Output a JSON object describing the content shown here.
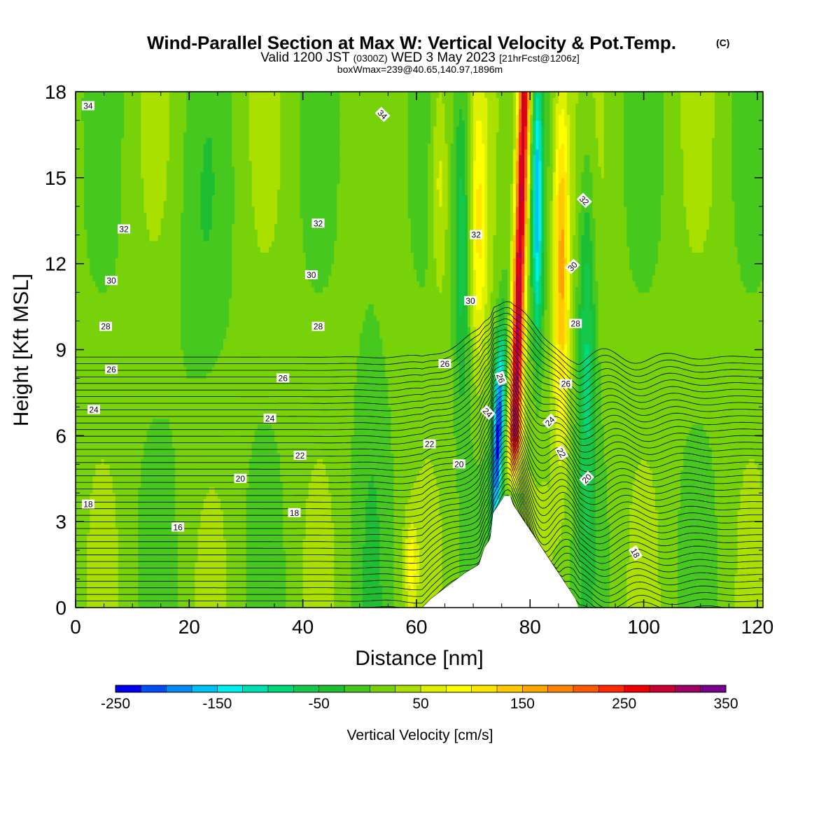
{
  "chart_data": {
    "type": "heatmap",
    "title": "Wind-Parallel Section at Max W: Vertical Velocity & Pot.Temp.",
    "title_mark": "(C)",
    "subtitle": {
      "valid": "Valid 1200 JST",
      "utc": "(0300Z)",
      "date": "WED 3 May 2023",
      "run": "[21hrFcst@1206z]"
    },
    "subtitle2": "boxWmax=239@40.65,140.97,1896m",
    "xlabel": "Distance [nm]",
    "ylabel": "Height [Kft MSL]",
    "xlim": [
      0,
      121
    ],
    "ylim": [
      0,
      18
    ],
    "xticks": [
      "0",
      "20",
      "40",
      "60",
      "80",
      "100",
      "120"
    ],
    "xtick_values": [
      0,
      20,
      40,
      60,
      80,
      100,
      120
    ],
    "yticks": [
      "0",
      "3",
      "6",
      "9",
      "12",
      "15",
      "18"
    ],
    "ytick_values": [
      0,
      3,
      6,
      9,
      12,
      15,
      18
    ],
    "colorbar": {
      "title": "Vertical Velocity [cm/s]",
      "labels": [
        "-250",
        "-150",
        "-50",
        "50",
        "150",
        "250",
        "350"
      ],
      "min": -250,
      "max": 350,
      "step": 25,
      "colors": [
        "#0000ee",
        "#0050f5",
        "#0088f5",
        "#00c0f5",
        "#00f0f0",
        "#00e0b4",
        "#00d67a",
        "#14c84b",
        "#1ebe32",
        "#46c81e",
        "#78d20a",
        "#aae000",
        "#dcf000",
        "#ffff00",
        "#ffe600",
        "#ffc800",
        "#ffa500",
        "#ff8200",
        "#ff5a00",
        "#ff2800",
        "#ee0000",
        "#c80032",
        "#a00064",
        "#78008c",
        "#5a00a0"
      ]
    },
    "features": {
      "updraft_core": {
        "x_base": 76.5,
        "x_top": 79,
        "peak_w": 300
      },
      "downdraft_core": {
        "x_base": 74,
        "x_top": 81.5,
        "min_w": -240
      },
      "terrain": [
        [
          61,
          0
        ],
        [
          62.5,
          0.3
        ],
        [
          64.5,
          0.6
        ],
        [
          66.5,
          0.9
        ],
        [
          68.5,
          1.2
        ],
        [
          71,
          1.5
        ],
        [
          72,
          2.1
        ],
        [
          73,
          2.4
        ],
        [
          73.5,
          3.3
        ],
        [
          74.5,
          3.6
        ],
        [
          75.5,
          3.9
        ],
        [
          76.5,
          3.9
        ],
        [
          77,
          3.6
        ],
        [
          78,
          3.3
        ],
        [
          79,
          3.0
        ],
        [
          80,
          2.7
        ],
        [
          81,
          2.4
        ],
        [
          82,
          2.1
        ],
        [
          83,
          1.8
        ],
        [
          84,
          1.5
        ],
        [
          85,
          1.2
        ],
        [
          86,
          0.9
        ],
        [
          87,
          0.6
        ],
        [
          88,
          0.3
        ],
        [
          88.5,
          0
        ]
      ]
    },
    "theta_contours": {
      "levels": [
        15,
        15.5,
        16,
        16.5,
        17,
        17.5,
        18,
        18.5,
        19,
        19.5,
        20,
        20.5,
        21,
        21.5,
        22,
        22.5,
        23,
        23.5,
        24,
        24.5,
        25,
        25.5,
        26,
        26.5,
        27,
        27.5,
        28,
        28.5,
        29,
        29.5,
        30,
        30.5,
        31,
        31.5,
        32,
        32.5,
        33,
        33.5,
        34,
        34.5
      ],
      "labels": [
        {
          "text": "34",
          "x": 2.2,
          "y": 17.5,
          "angle": 0
        },
        {
          "text": "34",
          "x": 54,
          "y": 17.2,
          "angle": 45
        },
        {
          "text": "32",
          "x": 8.5,
          "y": 13.2,
          "angle": 0
        },
        {
          "text": "32",
          "x": 42.7,
          "y": 13.4,
          "angle": 0
        },
        {
          "text": "32",
          "x": 70.5,
          "y": 13.0,
          "angle": 0
        },
        {
          "text": "32",
          "x": 89.5,
          "y": 14.2,
          "angle": 45
        },
        {
          "text": "30",
          "x": 6.3,
          "y": 11.4,
          "angle": 0
        },
        {
          "text": "30",
          "x": 41.5,
          "y": 11.6,
          "angle": 0
        },
        {
          "text": "30",
          "x": 69.5,
          "y": 10.7,
          "angle": 0
        },
        {
          "text": "30",
          "x": 87.5,
          "y": 11.9,
          "angle": -45
        },
        {
          "text": "28",
          "x": 5.3,
          "y": 9.8,
          "angle": 0
        },
        {
          "text": "28",
          "x": 42.7,
          "y": 9.8,
          "angle": 0
        },
        {
          "text": "28",
          "x": 88,
          "y": 9.9,
          "angle": 0
        },
        {
          "text": "26",
          "x": 6.3,
          "y": 8.3,
          "angle": 0
        },
        {
          "text": "26",
          "x": 36.5,
          "y": 8.0,
          "angle": 0
        },
        {
          "text": "26",
          "x": 65,
          "y": 8.5,
          "angle": 0
        },
        {
          "text": "26",
          "x": 74.8,
          "y": 8.0,
          "angle": 70
        },
        {
          "text": "26",
          "x": 86.3,
          "y": 7.8,
          "angle": 0
        },
        {
          "text": "24",
          "x": 3.2,
          "y": 6.9,
          "angle": 0
        },
        {
          "text": "24",
          "x": 34.2,
          "y": 6.6,
          "angle": 0
        },
        {
          "text": "24",
          "x": 72.5,
          "y": 6.8,
          "angle": 45
        },
        {
          "text": "24",
          "x": 83.5,
          "y": 6.5,
          "angle": -45
        },
        {
          "text": "22",
          "x": 39.5,
          "y": 5.3,
          "angle": 0
        },
        {
          "text": "22",
          "x": 62.3,
          "y": 5.7,
          "angle": 0
        },
        {
          "text": "22",
          "x": 85.5,
          "y": 5.4,
          "angle": 60
        },
        {
          "text": "20",
          "x": 29,
          "y": 4.5,
          "angle": 0
        },
        {
          "text": "20",
          "x": 67.5,
          "y": 5.0,
          "angle": 0
        },
        {
          "text": "20",
          "x": 90,
          "y": 4.5,
          "angle": -45
        },
        {
          "text": "18",
          "x": 2.2,
          "y": 3.6,
          "angle": 0
        },
        {
          "text": "18",
          "x": 38.5,
          "y": 3.3,
          "angle": 0
        },
        {
          "text": "18",
          "x": 98.5,
          "y": 1.9,
          "angle": 60
        },
        {
          "text": "16",
          "x": 18,
          "y": 2.8,
          "angle": 0
        }
      ]
    }
  }
}
